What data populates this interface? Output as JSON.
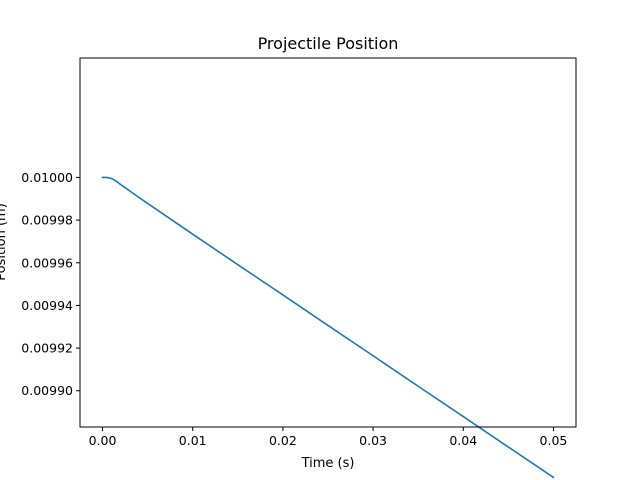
{
  "chart_data": {
    "type": "line",
    "title": "Projectile Position",
    "xlabel": "Time (s)",
    "ylabel": "Position (m)",
    "xlim": [
      -0.0025,
      0.0525
    ],
    "ylim": [
      0.009883,
      0.010056
    ],
    "xticks": [
      0.0,
      0.01,
      0.02,
      0.03,
      0.04,
      0.05
    ],
    "xtick_labels": [
      "0.00",
      "0.01",
      "0.02",
      "0.03",
      "0.04",
      "0.05"
    ],
    "yticks": [
      0.0099,
      0.00992,
      0.00994,
      0.00996,
      0.00998,
      0.01
    ],
    "ytick_labels": [
      "0.00990",
      "0.00992",
      "0.00994",
      "0.00996",
      "0.00998",
      "0.01000"
    ],
    "grid": false,
    "series": [
      {
        "color": "#1f77b4",
        "x": [
          0.0,
          0.0005,
          0.001,
          0.0015,
          0.002,
          0.003,
          0.004,
          0.005,
          0.01,
          0.015,
          0.02,
          0.025,
          0.03,
          0.035,
          0.04,
          0.045,
          0.05
        ],
        "y": [
          0.01,
          0.01,
          0.0099995,
          0.0099983,
          0.0099967,
          0.0099937,
          0.0099907,
          0.0099878,
          0.0099734,
          0.0099591,
          0.0099449,
          0.0099306,
          0.0099164,
          0.0099021,
          0.0098879,
          0.0098736,
          0.0098594
        ]
      }
    ]
  }
}
